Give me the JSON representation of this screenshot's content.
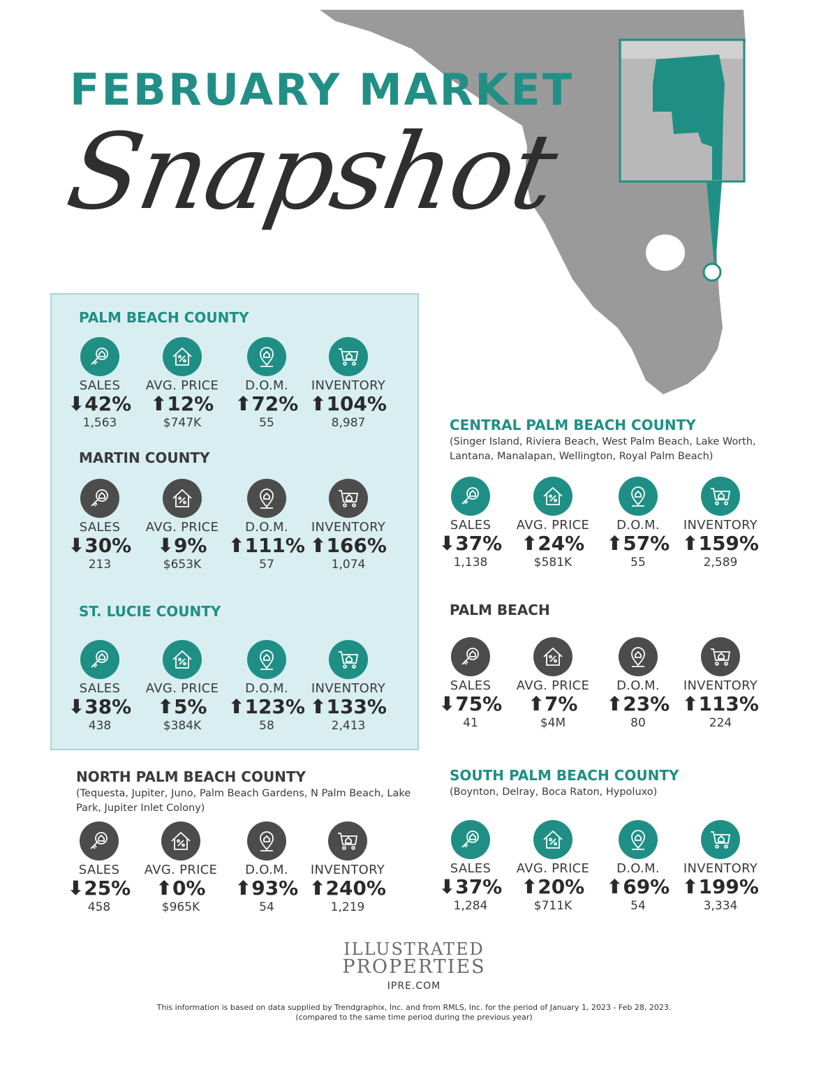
{
  "title": {
    "line1": "FEBRUARY MARKET",
    "line2": "Snapshot"
  },
  "colors": {
    "teal": "#1f8f85",
    "dark": "#4c4c4c",
    "map_gray": "#9a9a9a",
    "box_bg": "#d8eef1"
  },
  "regions": {
    "palm_beach_county": {
      "title": "PALM BEACH COUNTY",
      "stats": [
        {
          "label": "SALES",
          "dir": "down",
          "pct": "42%",
          "value": "1,563"
        },
        {
          "label": "AVG. PRICE",
          "dir": "up",
          "pct": "12%",
          "value": "$747K"
        },
        {
          "label": "D.O.M.",
          "dir": "up",
          "pct": "72%",
          "value": "55"
        },
        {
          "label": "INVENTORY",
          "dir": "up",
          "pct": "104%",
          "value": "8,987"
        }
      ]
    },
    "martin_county": {
      "title": "MARTIN COUNTY",
      "stats": [
        {
          "label": "SALES",
          "dir": "down",
          "pct": "30%",
          "value": "213"
        },
        {
          "label": "AVG. PRICE",
          "dir": "down",
          "pct": "9%",
          "value": "$653K"
        },
        {
          "label": "D.O.M.",
          "dir": "up",
          "pct": "111%",
          "value": "57"
        },
        {
          "label": "INVENTORY",
          "dir": "up",
          "pct": "166%",
          "value": "1,074"
        }
      ]
    },
    "st_lucie_county": {
      "title": "ST. LUCIE COUNTY",
      "stats": [
        {
          "label": "SALES",
          "dir": "down",
          "pct": "38%",
          "value": "438"
        },
        {
          "label": "AVG. PRICE",
          "dir": "up",
          "pct": "5%",
          "value": "$384K"
        },
        {
          "label": "D.O.M.",
          "dir": "up",
          "pct": "123%",
          "value": "58"
        },
        {
          "label": "INVENTORY",
          "dir": "up",
          "pct": "133%",
          "value": "2,413"
        }
      ]
    },
    "central_palm_beach_county": {
      "title": "CENTRAL PALM BEACH COUNTY",
      "subtitle": "(Singer Island, Riviera Beach, West Palm Beach, Lake Worth, Lantana, Manalapan, Wellington, Royal Palm Beach)",
      "stats": [
        {
          "label": "SALES",
          "dir": "down",
          "pct": "37%",
          "value": "1,138"
        },
        {
          "label": "AVG. PRICE",
          "dir": "up",
          "pct": "24%",
          "value": "$581K"
        },
        {
          "label": "D.O.M.",
          "dir": "up",
          "pct": "57%",
          "value": "55"
        },
        {
          "label": "INVENTORY",
          "dir": "up",
          "pct": "159%",
          "value": "2,589"
        }
      ]
    },
    "palm_beach": {
      "title": "PALM BEACH",
      "stats": [
        {
          "label": "SALES",
          "dir": "down",
          "pct": "75%",
          "value": "41"
        },
        {
          "label": "AVG. PRICE",
          "dir": "up",
          "pct": "7%",
          "value": "$4M"
        },
        {
          "label": "D.O.M.",
          "dir": "up",
          "pct": "23%",
          "value": "80"
        },
        {
          "label": "INVENTORY",
          "dir": "up",
          "pct": "113%",
          "value": "224"
        }
      ]
    },
    "north_palm_beach_county": {
      "title": "NORTH PALM BEACH COUNTY",
      "subtitle": "(Tequesta, Jupiter, Juno, Palm Beach Gardens, N Palm Beach, Lake Park, Jupiter Inlet Colony)",
      "stats": [
        {
          "label": "SALES",
          "dir": "down",
          "pct": "25%",
          "value": "458"
        },
        {
          "label": "AVG. PRICE",
          "dir": "up",
          "pct": "0%",
          "value": "$965K"
        },
        {
          "label": "D.O.M.",
          "dir": "up",
          "pct": "93%",
          "value": "54"
        },
        {
          "label": "INVENTORY",
          "dir": "up",
          "pct": "240%",
          "value": "1,219"
        }
      ]
    },
    "south_palm_beach_county": {
      "title": "SOUTH PALM BEACH COUNTY",
      "subtitle": "(Boynton, Delray, Boca Raton, Hypoluxo)",
      "stats": [
        {
          "label": "SALES",
          "dir": "down",
          "pct": "37%",
          "value": "1,284"
        },
        {
          "label": "AVG. PRICE",
          "dir": "up",
          "pct": "20%",
          "value": "$711K"
        },
        {
          "label": "D.O.M.",
          "dir": "up",
          "pct": "69%",
          "value": "54"
        },
        {
          "label": "INVENTORY",
          "dir": "up",
          "pct": "199%",
          "value": "3,334"
        }
      ]
    }
  },
  "brand": {
    "line1": "ILLUSTRATED",
    "line2": "PROPERTIES",
    "url": "IPRE.COM"
  },
  "footer": {
    "line1": "This information is based on data supplied by Trendgraphix, Inc. and from RMLS, Inc. for the period of January 1, 2023 - Feb 28, 2023.",
    "line2": "(compared to the same time period during the previous year)"
  }
}
